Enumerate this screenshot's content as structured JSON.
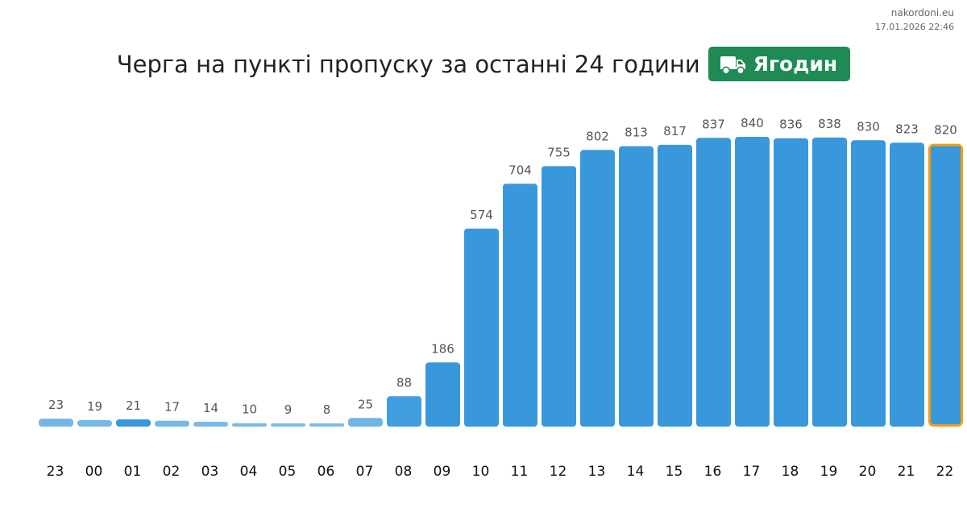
{
  "site": {
    "domain": "nakordoni.eu",
    "timestamp": "17.01.2026 22:46"
  },
  "header": {
    "title": "Черга на пункті пропуску за останні 24 години",
    "badge_label": "Ягодин",
    "badge_icon": "truck-icon",
    "badge_color": "#1f8a54"
  },
  "chart_data": {
    "type": "bar",
    "categories": [
      "23",
      "00",
      "01",
      "02",
      "03",
      "04",
      "05",
      "06",
      "07",
      "08",
      "09",
      "10",
      "11",
      "12",
      "13",
      "14",
      "15",
      "16",
      "17",
      "18",
      "19",
      "20",
      "21",
      "22"
    ],
    "values": [
      23,
      19,
      21,
      17,
      14,
      10,
      9,
      8,
      25,
      88,
      186,
      574,
      704,
      755,
      802,
      813,
      817,
      837,
      840,
      836,
      838,
      830,
      823,
      820
    ],
    "bar_color": "#3898db",
    "highlight_index": 23,
    "highlight_color": "#f39c12",
    "title": "",
    "xlabel": "",
    "ylabel": "",
    "ylim": [
      0,
      840
    ],
    "grid": false,
    "legend": "none"
  }
}
